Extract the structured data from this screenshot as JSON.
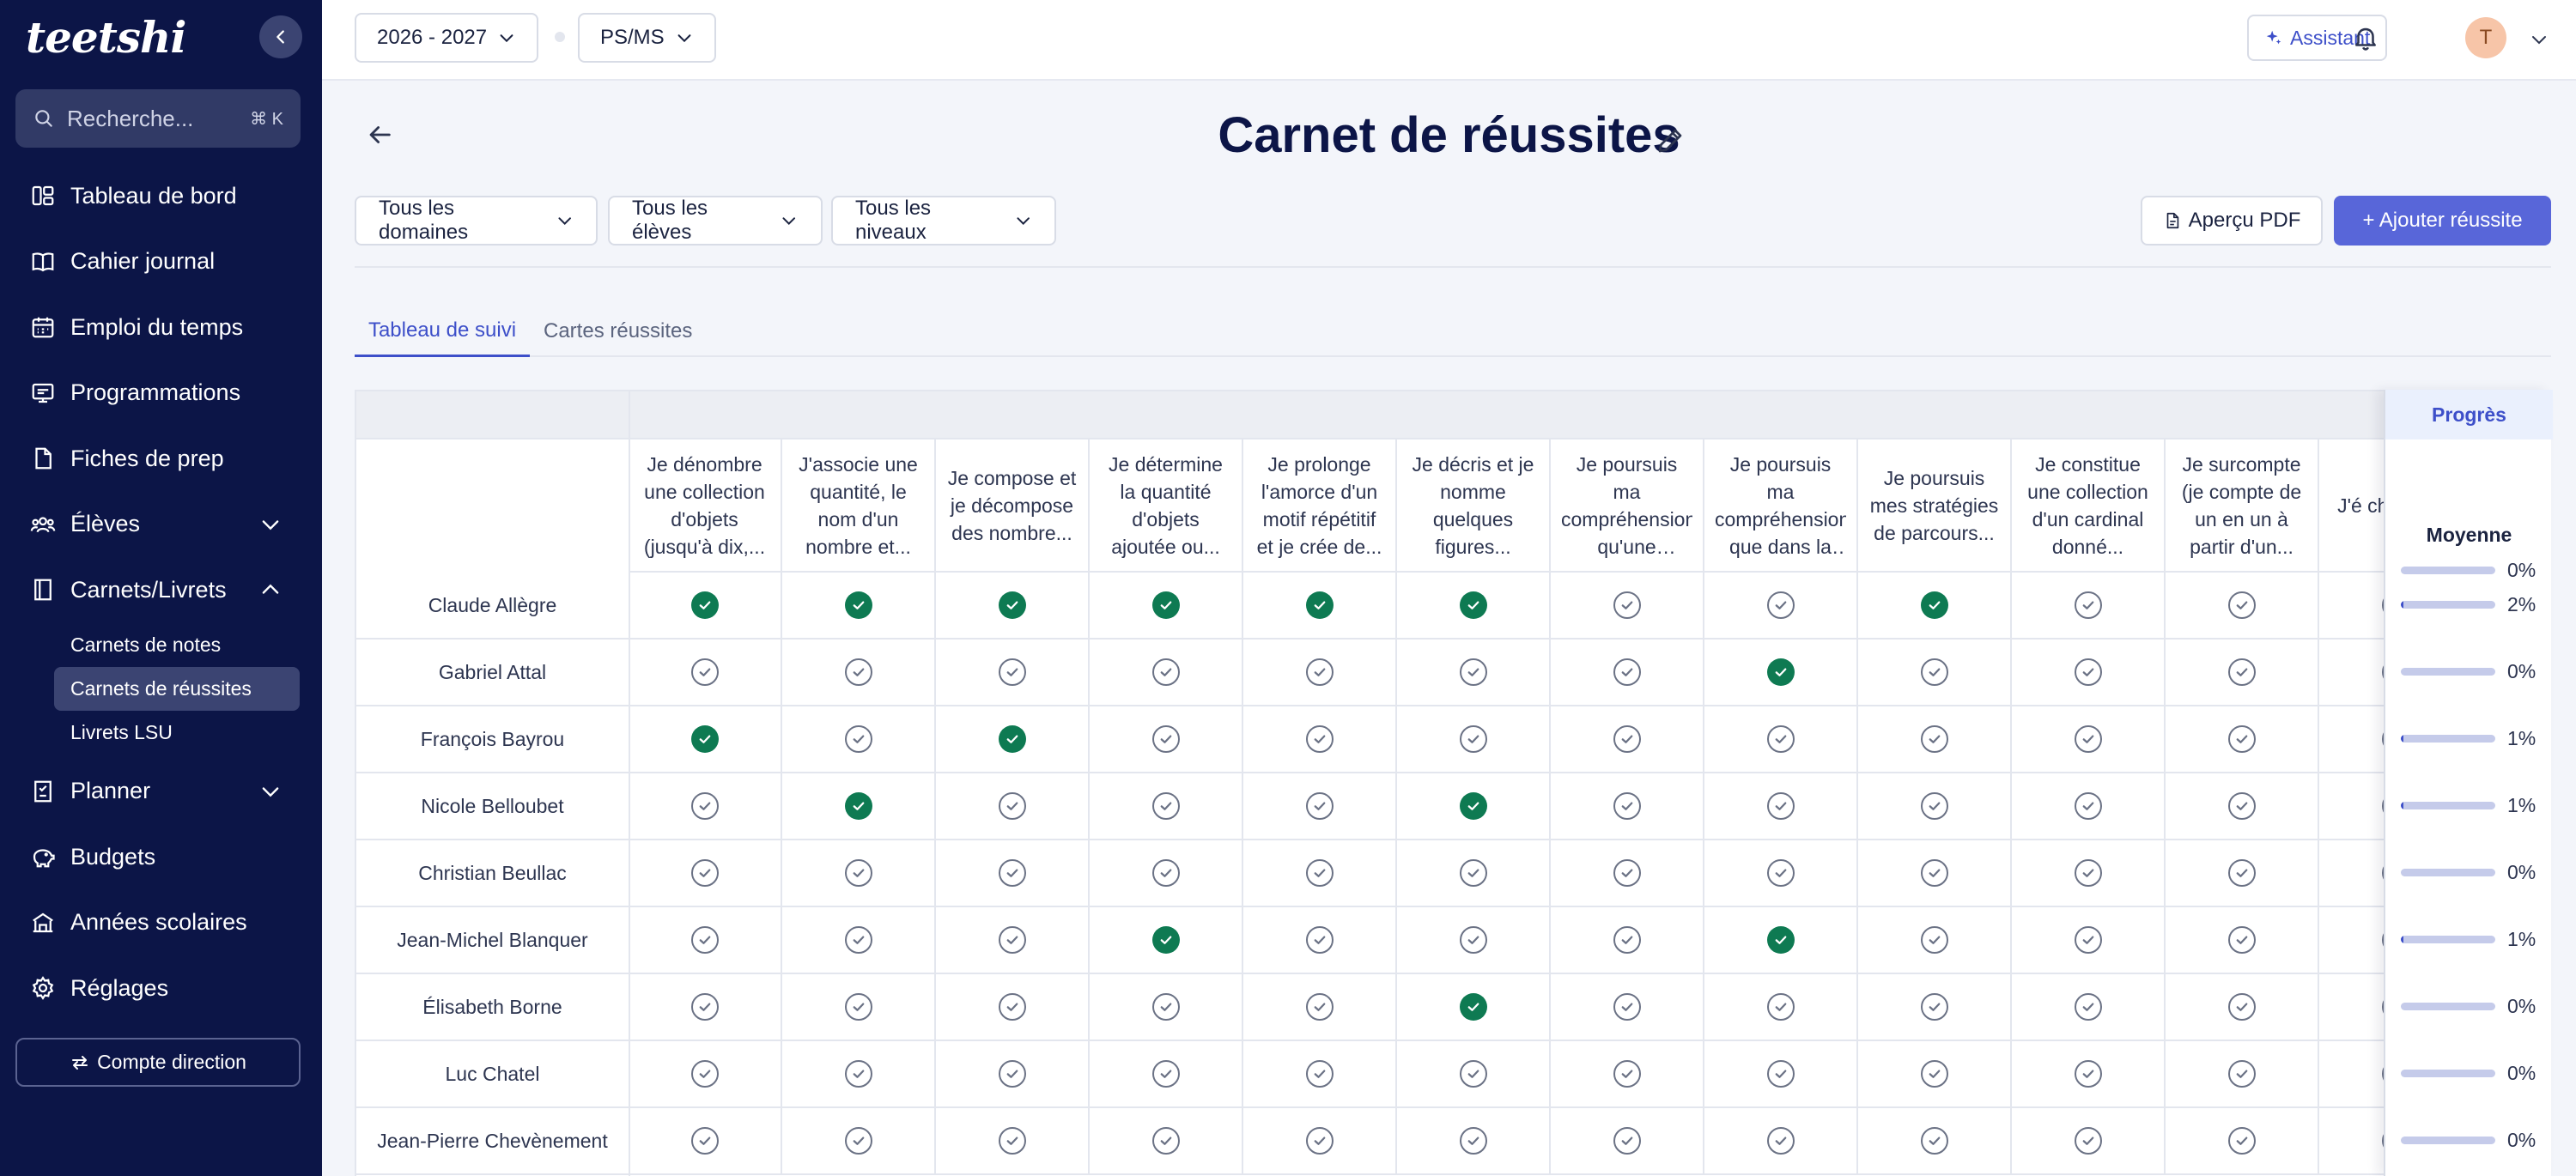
{
  "app": {
    "logo_text": "teetshi"
  },
  "sidebar": {
    "search_placeholder": "Recherche...",
    "search_shortcut": "⌘ K",
    "items": [
      {
        "label": "Tableau de bord",
        "icon": "dashboard-icon"
      },
      {
        "label": "Cahier journal",
        "icon": "book-icon"
      },
      {
        "label": "Emploi du temps",
        "icon": "calendar-icon"
      },
      {
        "label": "Programmations",
        "icon": "presentation-icon"
      },
      {
        "label": "Fiches de prep",
        "icon": "document-icon"
      },
      {
        "label": "Élèves",
        "icon": "users-icon",
        "expandable": true
      },
      {
        "label": "Carnets/Livrets",
        "icon": "notebook-icon",
        "expanded": true
      },
      {
        "label": "Planner",
        "icon": "planner-icon",
        "expandable": true
      },
      {
        "label": "Budgets",
        "icon": "piggy-bank-icon"
      },
      {
        "label": "Années scolaires",
        "icon": "school-icon"
      },
      {
        "label": "Réglages",
        "icon": "gear-icon"
      }
    ],
    "subitems": [
      "Carnets de notes",
      "Carnets de réussites",
      "Livrets LSU"
    ],
    "active_subitem": 1,
    "account_button": "Compte direction"
  },
  "topbar": {
    "year_select": "2026 - 2027",
    "class_select": "PS/MS",
    "assistant_label": "Assistant",
    "avatar_initial": "T"
  },
  "page": {
    "title": "Carnet de réussites",
    "filters": [
      "Tous les domaines",
      "Tous les élèves",
      "Tous les niveaux"
    ],
    "pdf_button": "Aperçu PDF",
    "add_button": "+ Ajouter réussite",
    "tabs": [
      "Tableau de suivi",
      "Cartes réussites"
    ],
    "active_tab": 0
  },
  "table": {
    "columns": [
      "Je dénombre une collection d'objets (jusqu'à dix,...",
      "J'associe une quantité, le nom d'un nombre et...",
      "Je compose et je décompose des nombre...",
      "Je détermine la quantité d'objets ajoutée ou...",
      "Je prolonge l'amorce d'un motif répétitif et je crée de...",
      "Je décris et je nomme quelques figures...",
      "Je poursuis ma compréhension qu'une quantité...",
      "Je poursuis ma compréhension que dans la suite orale de...",
      "Je poursuis mes stratégies de parcours...",
      "Je constitue une collection d'un cardinal donné...",
      "Je surcompte (je compte de un en un à partir d'un...",
      "J'é chi nom u"
    ],
    "students": [
      {
        "name": "Claude Allègre",
        "checks": [
          1,
          1,
          1,
          1,
          1,
          1,
          0,
          0,
          1,
          0,
          0,
          0
        ]
      },
      {
        "name": "Gabriel Attal",
        "checks": [
          0,
          0,
          0,
          0,
          0,
          0,
          0,
          1,
          0,
          0,
          0,
          0
        ]
      },
      {
        "name": "François Bayrou",
        "checks": [
          1,
          0,
          1,
          0,
          0,
          0,
          0,
          0,
          0,
          0,
          0,
          0
        ]
      },
      {
        "name": "Nicole Belloubet",
        "checks": [
          0,
          1,
          0,
          0,
          0,
          1,
          0,
          0,
          0,
          0,
          0,
          0
        ]
      },
      {
        "name": "Christian Beullac",
        "checks": [
          0,
          0,
          0,
          0,
          0,
          0,
          0,
          0,
          0,
          0,
          0,
          0
        ]
      },
      {
        "name": "Jean-Michel Blanquer",
        "checks": [
          0,
          0,
          0,
          1,
          0,
          0,
          0,
          1,
          0,
          0,
          0,
          0
        ]
      },
      {
        "name": "Élisabeth Borne",
        "checks": [
          0,
          0,
          0,
          0,
          0,
          1,
          0,
          0,
          0,
          0,
          0,
          0
        ]
      },
      {
        "name": "Luc Chatel",
        "checks": [
          0,
          0,
          0,
          0,
          0,
          0,
          0,
          0,
          0,
          0,
          0,
          0
        ]
      },
      {
        "name": "Jean-Pierre Chevènement",
        "checks": [
          0,
          0,
          0,
          0,
          0,
          0,
          0,
          0,
          0,
          0,
          0,
          0
        ]
      }
    ],
    "progress_header": "Progrès",
    "average_label": "Moyenne",
    "average_pct": "0%",
    "average_value": 0,
    "progress": [
      {
        "pct": "2%",
        "value": 2
      },
      {
        "pct": "0%",
        "value": 0
      },
      {
        "pct": "1%",
        "value": 1
      },
      {
        "pct": "1%",
        "value": 1
      },
      {
        "pct": "0%",
        "value": 0
      },
      {
        "pct": "1%",
        "value": 1
      },
      {
        "pct": "0%",
        "value": 0
      },
      {
        "pct": "0%",
        "value": 0
      },
      {
        "pct": "0%",
        "value": 0
      }
    ]
  }
}
